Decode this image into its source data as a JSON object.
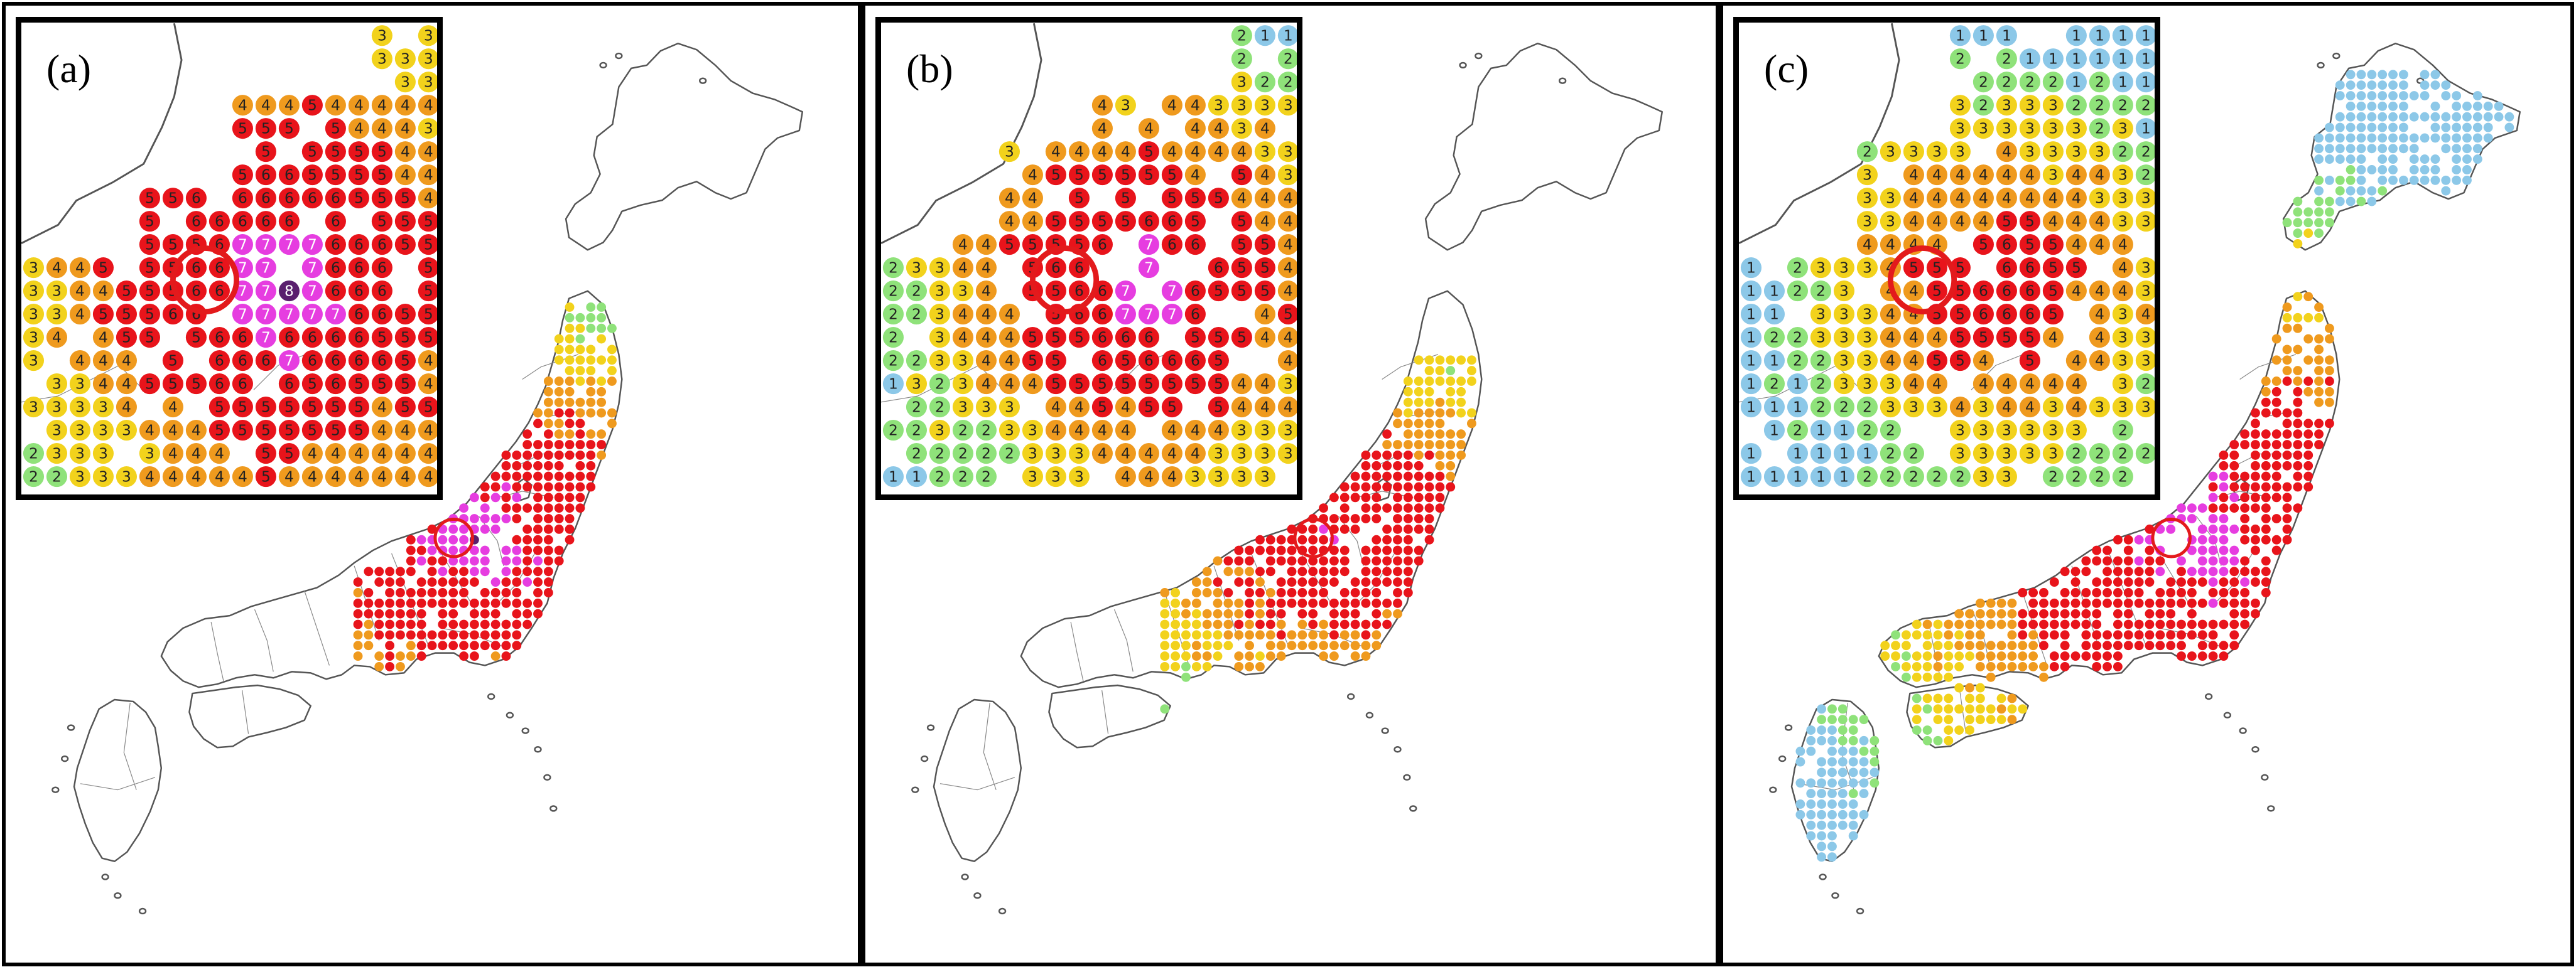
{
  "panels": [
    {
      "id": "a",
      "label": "(a)"
    },
    {
      "id": "b",
      "label": "(b)"
    },
    {
      "id": "c",
      "label": "(c)"
    }
  ],
  "legend_colors": {
    "1": "#8cc8e8",
    "2": "#8fe27a",
    "3": "#f2d21c",
    "4": "#ef9a1e",
    "5": "#e8141b",
    "6": "#e8141b",
    "7": "#e63de0",
    "8": "#5a1f6e"
  },
  "symbols": "intensity-circle-icon",
  "epicenter_marker": "epicenter-ring-icon"
}
